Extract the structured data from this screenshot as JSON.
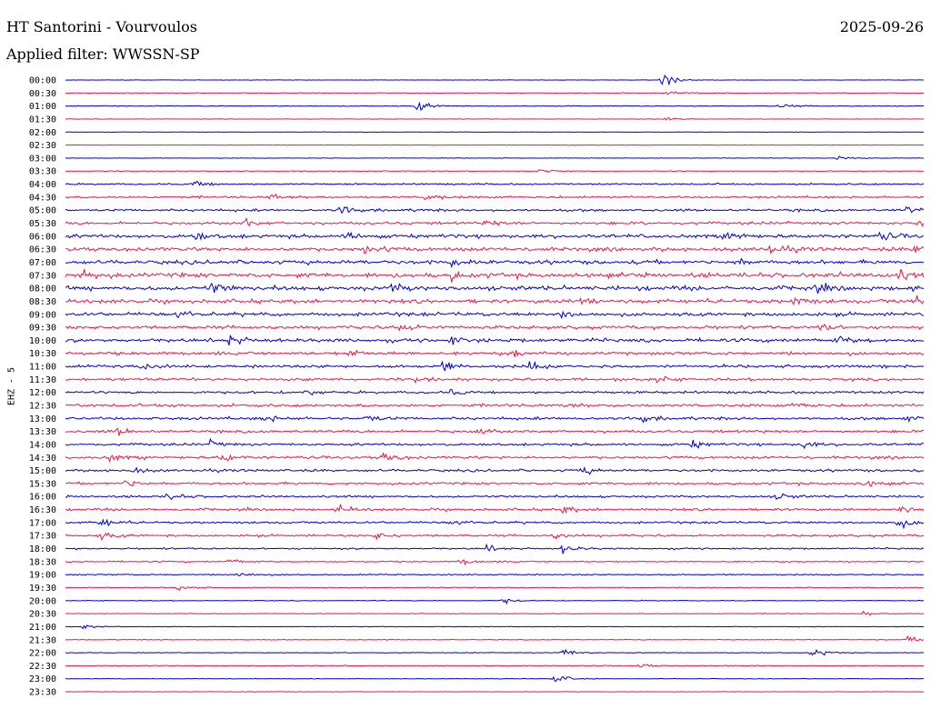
{
  "header": {
    "station": "HT Santorini - Vourvoulos",
    "date": "2025-09-26",
    "filter": "Applied filter: WWSSN-SP"
  },
  "chart_data": {
    "type": "line",
    "title": "HT Santorini - Vourvoulos",
    "ylabel": "EHZ - 5",
    "row_colors": [
      "#0000cc",
      "#e8174a"
    ],
    "rows": [
      "00:00",
      "00:30",
      "01:00",
      "01:30",
      "02:00",
      "02:30",
      "03:00",
      "03:30",
      "04:00",
      "04:30",
      "05:00",
      "05:30",
      "06:00",
      "06:30",
      "07:00",
      "07:30",
      "08:00",
      "08:30",
      "09:00",
      "09:30",
      "10:00",
      "10:30",
      "11:00",
      "11:30",
      "12:00",
      "12:30",
      "13:00",
      "13:30",
      "14:00",
      "14:30",
      "15:00",
      "15:30",
      "16:00",
      "16:30",
      "17:00",
      "17:30",
      "18:00",
      "18:30",
      "19:00",
      "19:30",
      "20:00",
      "20:30",
      "21:00",
      "21:30",
      "22:00",
      "22:30",
      "23:00",
      "23:30"
    ],
    "noise_level": [
      0.3,
      0.6,
      0.6,
      0.4,
      0.3,
      0.3,
      0.4,
      0.6,
      1.2,
      1.6,
      1.8,
      2.0,
      2.6,
      2.8,
      2.8,
      3.4,
      3.2,
      2.8,
      2.6,
      2.4,
      2.6,
      2.4,
      2.2,
      2.0,
      1.8,
      2.0,
      2.0,
      2.0,
      1.8,
      2.0,
      1.8,
      1.8,
      1.6,
      1.8,
      1.6,
      1.6,
      1.2,
      1.0,
      0.9,
      0.8,
      0.6,
      0.5,
      0.5,
      0.5,
      0.5,
      0.6,
      0.4,
      0.4
    ],
    "events": [
      {
        "row": 0,
        "t": 0.695,
        "amp": 14
      },
      {
        "row": 1,
        "t": 0.7,
        "amp": 5
      },
      {
        "row": 2,
        "t": 0.41,
        "amp": 9
      },
      {
        "row": 2,
        "t": 0.83,
        "amp": 5
      },
      {
        "row": 3,
        "t": 0.7,
        "amp": 5
      },
      {
        "row": 6,
        "t": 0.9,
        "amp": 4
      },
      {
        "row": 7,
        "t": 0.55,
        "amp": 5
      },
      {
        "row": 8,
        "t": 0.15,
        "amp": 6
      },
      {
        "row": 9,
        "t": 0.24,
        "amp": 8
      },
      {
        "row": 9,
        "t": 0.42,
        "amp": 6
      },
      {
        "row": 10,
        "t": 0.32,
        "amp": 8
      },
      {
        "row": 10,
        "t": 0.98,
        "amp": 6
      },
      {
        "row": 11,
        "t": 0.21,
        "amp": 6
      },
      {
        "row": 11,
        "t": 0.49,
        "amp": 5
      },
      {
        "row": 11,
        "t": 0.99,
        "amp": 8
      },
      {
        "row": 12,
        "t": 0.15,
        "amp": 7
      },
      {
        "row": 12,
        "t": 0.33,
        "amp": 8
      },
      {
        "row": 12,
        "t": 0.77,
        "amp": 8
      },
      {
        "row": 12,
        "t": 0.95,
        "amp": 7
      },
      {
        "row": 13,
        "t": 0.35,
        "amp": 9
      },
      {
        "row": 13,
        "t": 0.82,
        "amp": 7
      },
      {
        "row": 13,
        "t": 0.99,
        "amp": 7
      },
      {
        "row": 14,
        "t": 0.45,
        "amp": 7
      },
      {
        "row": 14,
        "t": 0.78,
        "amp": 6
      },
      {
        "row": 15,
        "t": 0.02,
        "amp": 8
      },
      {
        "row": 15,
        "t": 0.45,
        "amp": 7
      },
      {
        "row": 15,
        "t": 0.97,
        "amp": 9
      },
      {
        "row": 16,
        "t": 0.17,
        "amp": 8
      },
      {
        "row": 16,
        "t": 0.38,
        "amp": 7
      },
      {
        "row": 16,
        "t": 0.87,
        "amp": 7
      },
      {
        "row": 17,
        "t": 0.6,
        "amp": 8
      },
      {
        "row": 17,
        "t": 0.85,
        "amp": 7
      },
      {
        "row": 17,
        "t": 0.99,
        "amp": 8
      },
      {
        "row": 18,
        "t": 0.13,
        "amp": 7
      },
      {
        "row": 18,
        "t": 0.58,
        "amp": 6
      },
      {
        "row": 19,
        "t": 0.39,
        "amp": 7
      },
      {
        "row": 19,
        "t": 0.88,
        "amp": 7
      },
      {
        "row": 20,
        "t": 0.19,
        "amp": 9
      },
      {
        "row": 20,
        "t": 0.45,
        "amp": 6
      },
      {
        "row": 20,
        "t": 0.9,
        "amp": 7
      },
      {
        "row": 21,
        "t": 0.33,
        "amp": 6
      },
      {
        "row": 21,
        "t": 0.52,
        "amp": 6
      },
      {
        "row": 22,
        "t": 0.09,
        "amp": 7
      },
      {
        "row": 22,
        "t": 0.44,
        "amp": 7
      },
      {
        "row": 22,
        "t": 0.54,
        "amp": 7
      },
      {
        "row": 23,
        "t": 0.41,
        "amp": 5
      },
      {
        "row": 23,
        "t": 0.69,
        "amp": 6
      },
      {
        "row": 24,
        "t": 0.28,
        "amp": 5
      },
      {
        "row": 24,
        "t": 0.45,
        "amp": 5
      },
      {
        "row": 25,
        "t": 0.58,
        "amp": 6
      },
      {
        "row": 25,
        "t": 0.85,
        "amp": 7
      },
      {
        "row": 26,
        "t": 0.23,
        "amp": 7
      },
      {
        "row": 26,
        "t": 0.35,
        "amp": 7
      },
      {
        "row": 26,
        "t": 0.67,
        "amp": 6
      },
      {
        "row": 26,
        "t": 0.98,
        "amp": 6
      },
      {
        "row": 27,
        "t": 0.06,
        "amp": 6
      },
      {
        "row": 27,
        "t": 0.48,
        "amp": 6
      },
      {
        "row": 28,
        "t": 0.17,
        "amp": 6
      },
      {
        "row": 28,
        "t": 0.73,
        "amp": 6
      },
      {
        "row": 28,
        "t": 0.86,
        "amp": 6
      },
      {
        "row": 29,
        "t": 0.05,
        "amp": 7
      },
      {
        "row": 29,
        "t": 0.18,
        "amp": 9
      },
      {
        "row": 29,
        "t": 0.37,
        "amp": 8
      },
      {
        "row": 30,
        "t": 0.08,
        "amp": 5
      },
      {
        "row": 30,
        "t": 0.6,
        "amp": 7
      },
      {
        "row": 31,
        "t": 0.07,
        "amp": 7
      },
      {
        "row": 31,
        "t": 0.93,
        "amp": 6
      },
      {
        "row": 32,
        "t": 0.12,
        "amp": 7
      },
      {
        "row": 32,
        "t": 0.83,
        "amp": 7
      },
      {
        "row": 33,
        "t": 0.32,
        "amp": 6
      },
      {
        "row": 33,
        "t": 0.58,
        "amp": 6
      },
      {
        "row": 33,
        "t": 0.97,
        "amp": 7
      },
      {
        "row": 34,
        "t": 0.04,
        "amp": 9
      },
      {
        "row": 34,
        "t": 0.45,
        "amp": 6
      },
      {
        "row": 34,
        "t": 0.97,
        "amp": 9
      },
      {
        "row": 35,
        "t": 0.04,
        "amp": 7
      },
      {
        "row": 35,
        "t": 0.36,
        "amp": 6
      },
      {
        "row": 35,
        "t": 0.57,
        "amp": 5
      },
      {
        "row": 36,
        "t": 0.49,
        "amp": 6
      },
      {
        "row": 36,
        "t": 0.58,
        "amp": 7
      },
      {
        "row": 37,
        "t": 0.19,
        "amp": 6
      },
      {
        "row": 37,
        "t": 0.46,
        "amp": 5
      },
      {
        "row": 38,
        "t": 0.2,
        "amp": 6
      },
      {
        "row": 39,
        "t": 0.13,
        "amp": 6
      },
      {
        "row": 40,
        "t": 0.51,
        "amp": 5
      },
      {
        "row": 41,
        "t": 0.93,
        "amp": 4
      },
      {
        "row": 42,
        "t": 0.02,
        "amp": 4
      },
      {
        "row": 43,
        "t": 0.98,
        "amp": 7
      },
      {
        "row": 44,
        "t": 0.58,
        "amp": 8
      },
      {
        "row": 44,
        "t": 0.87,
        "amp": 10
      },
      {
        "row": 45,
        "t": 0.67,
        "amp": 5
      },
      {
        "row": 46,
        "t": 0.57,
        "amp": 10
      }
    ]
  }
}
